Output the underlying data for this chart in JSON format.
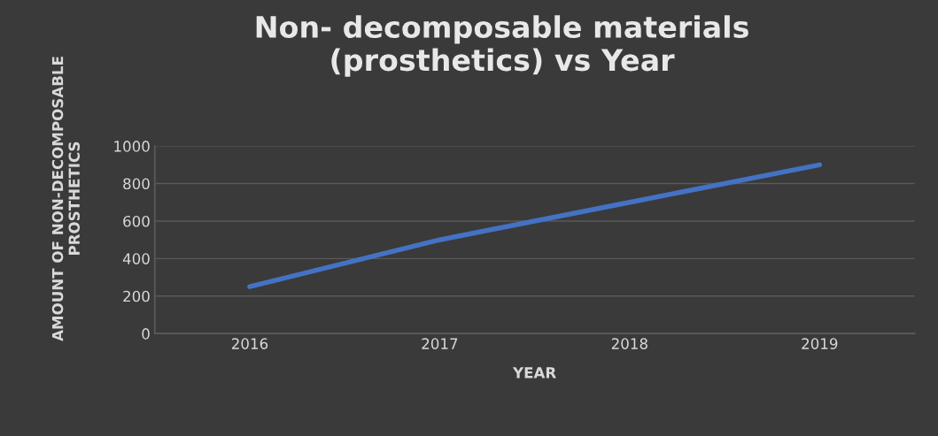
{
  "chart_data": {
    "type": "line",
    "title": "Non- decomposable materials\n(prosthetics) vs Year",
    "xlabel": "YEAR",
    "ylabel": "AMOUNT OF NON-DECOMPOSABLE\nPROSTHETICS",
    "categories": [
      "2016",
      "2017",
      "2018",
      "2019"
    ],
    "series": [
      {
        "color": "#4472c4",
        "values": [
          250,
          500,
          700,
          900
        ]
      }
    ],
    "ylim": [
      0,
      1000
    ],
    "yticks": [
      0,
      200,
      400,
      600,
      800,
      1000
    ],
    "grid": "y",
    "legend": false,
    "marker": "none",
    "line_style": "solid"
  }
}
